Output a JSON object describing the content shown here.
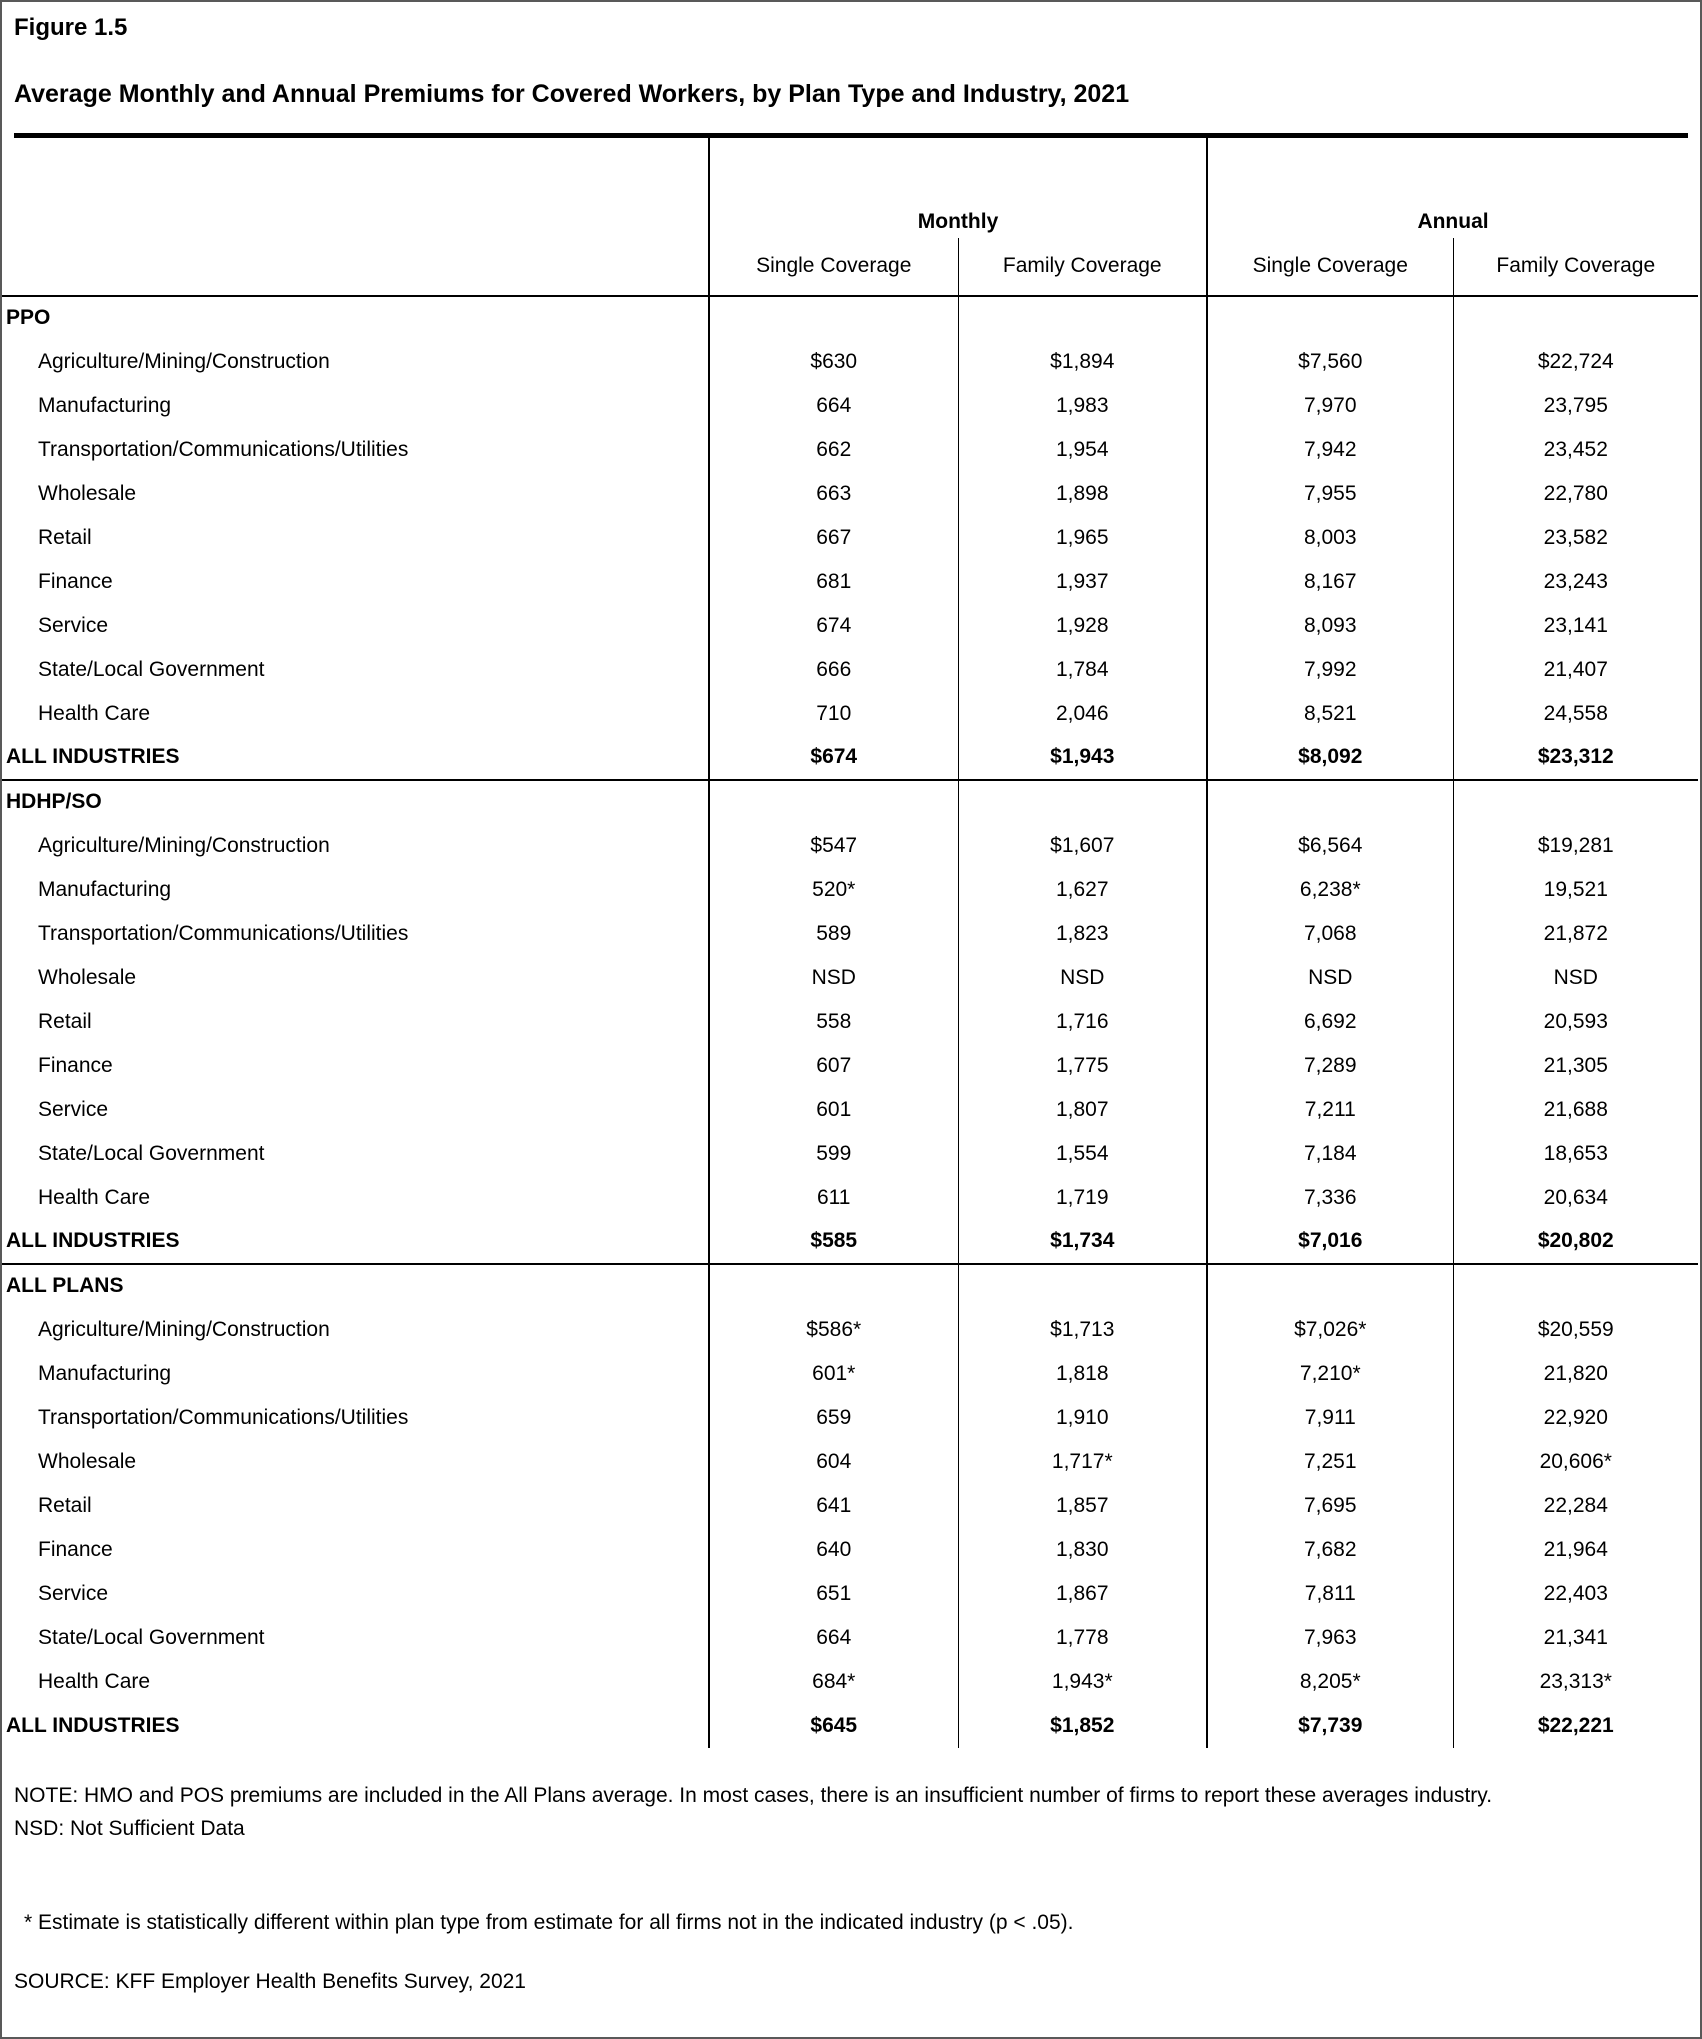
{
  "figure_label": "Figure 1.5",
  "title": "Average Monthly and Annual Premiums for Covered Workers, by Plan Type and Industry, 2021",
  "table": {
    "col_groups": [
      "Monthly",
      "Annual"
    ],
    "sub_headers": [
      "Single Coverage",
      "Family Coverage",
      "Single Coverage",
      "Family Coverage"
    ],
    "sections": [
      {
        "name": "PPO",
        "rows": [
          {
            "label": "Agriculture/Mining/Construction",
            "values": [
              "$630",
              "$1,894",
              "$7,560",
              "$22,724"
            ]
          },
          {
            "label": "Manufacturing",
            "values": [
              "664",
              "1,983",
              "7,970",
              "23,795"
            ]
          },
          {
            "label": "Transportation/Communications/Utilities",
            "values": [
              "662",
              "1,954",
              "7,942",
              "23,452"
            ]
          },
          {
            "label": "Wholesale",
            "values": [
              "663",
              "1,898",
              "7,955",
              "22,780"
            ]
          },
          {
            "label": "Retail",
            "values": [
              "667",
              "1,965",
              "8,003",
              "23,582"
            ]
          },
          {
            "label": "Finance",
            "values": [
              "681",
              "1,937",
              "8,167",
              "23,243"
            ]
          },
          {
            "label": "Service",
            "values": [
              "674",
              "1,928",
              "8,093",
              "23,141"
            ]
          },
          {
            "label": "State/Local Government",
            "values": [
              "666",
              "1,784",
              "7,992",
              "21,407"
            ]
          },
          {
            "label": "Health Care",
            "values": [
              "710",
              "2,046",
              "8,521",
              "24,558"
            ]
          }
        ],
        "total": {
          "label": "ALL INDUSTRIES",
          "values": [
            "$674",
            "$1,943",
            "$8,092",
            "$23,312"
          ]
        }
      },
      {
        "name": "HDHP/SO",
        "rows": [
          {
            "label": "Agriculture/Mining/Construction",
            "values": [
              "$547",
              "$1,607",
              "$6,564",
              "$19,281"
            ]
          },
          {
            "label": "Manufacturing",
            "values": [
              "520*",
              "1,627",
              "6,238*",
              "19,521"
            ]
          },
          {
            "label": "Transportation/Communications/Utilities",
            "values": [
              "589",
              "1,823",
              "7,068",
              "21,872"
            ]
          },
          {
            "label": "Wholesale",
            "values": [
              "NSD",
              "NSD",
              "NSD",
              "NSD"
            ]
          },
          {
            "label": "Retail",
            "values": [
              "558",
              "1,716",
              "6,692",
              "20,593"
            ]
          },
          {
            "label": "Finance",
            "values": [
              "607",
              "1,775",
              "7,289",
              "21,305"
            ]
          },
          {
            "label": "Service",
            "values": [
              "601",
              "1,807",
              "7,211",
              "21,688"
            ]
          },
          {
            "label": "State/Local Government",
            "values": [
              "599",
              "1,554",
              "7,184",
              "18,653"
            ]
          },
          {
            "label": "Health Care",
            "values": [
              "611",
              "1,719",
              "7,336",
              "20,634"
            ]
          }
        ],
        "total": {
          "label": "ALL INDUSTRIES",
          "values": [
            "$585",
            "$1,734",
            "$7,016",
            "$20,802"
          ]
        }
      },
      {
        "name": "ALL PLANS",
        "rows": [
          {
            "label": "Agriculture/Mining/Construction",
            "values": [
              "$586*",
              "$1,713",
              "$7,026*",
              "$20,559"
            ]
          },
          {
            "label": "Manufacturing",
            "values": [
              "601*",
              "1,818",
              "7,210*",
              "21,820"
            ]
          },
          {
            "label": "Transportation/Communications/Utilities",
            "values": [
              "659",
              "1,910",
              "7,911",
              "22,920"
            ]
          },
          {
            "label": "Wholesale",
            "values": [
              "604",
              "1,717*",
              "7,251",
              "20,606*"
            ]
          },
          {
            "label": "Retail",
            "values": [
              "641",
              "1,857",
              "7,695",
              "22,284"
            ]
          },
          {
            "label": "Finance",
            "values": [
              "640",
              "1,830",
              "7,682",
              "21,964"
            ]
          },
          {
            "label": "Service",
            "values": [
              "651",
              "1,867",
              "7,811",
              "22,403"
            ]
          },
          {
            "label": "State/Local Government",
            "values": [
              "664",
              "1,778",
              "7,963",
              "21,341"
            ]
          },
          {
            "label": "Health Care",
            "values": [
              "684*",
              "1,943*",
              "8,205*",
              "23,313*"
            ]
          }
        ],
        "total": {
          "label": "ALL INDUSTRIES",
          "values": [
            "$645",
            "$1,852",
            "$7,739",
            "$22,221"
          ]
        }
      }
    ]
  },
  "notes": {
    "note": "NOTE: HMO and POS premiums are included in the All Plans average. In most cases, there is an insufficient number of firms to report these averages industry.",
    "nsd": "NSD: Not Sufficient Data",
    "asterisk": "* Estimate is statistically different within plan type from estimate for all firms not in the indicated industry (p < .05).",
    "source": "SOURCE: KFF Employer Health Benefits Survey, 2021"
  }
}
